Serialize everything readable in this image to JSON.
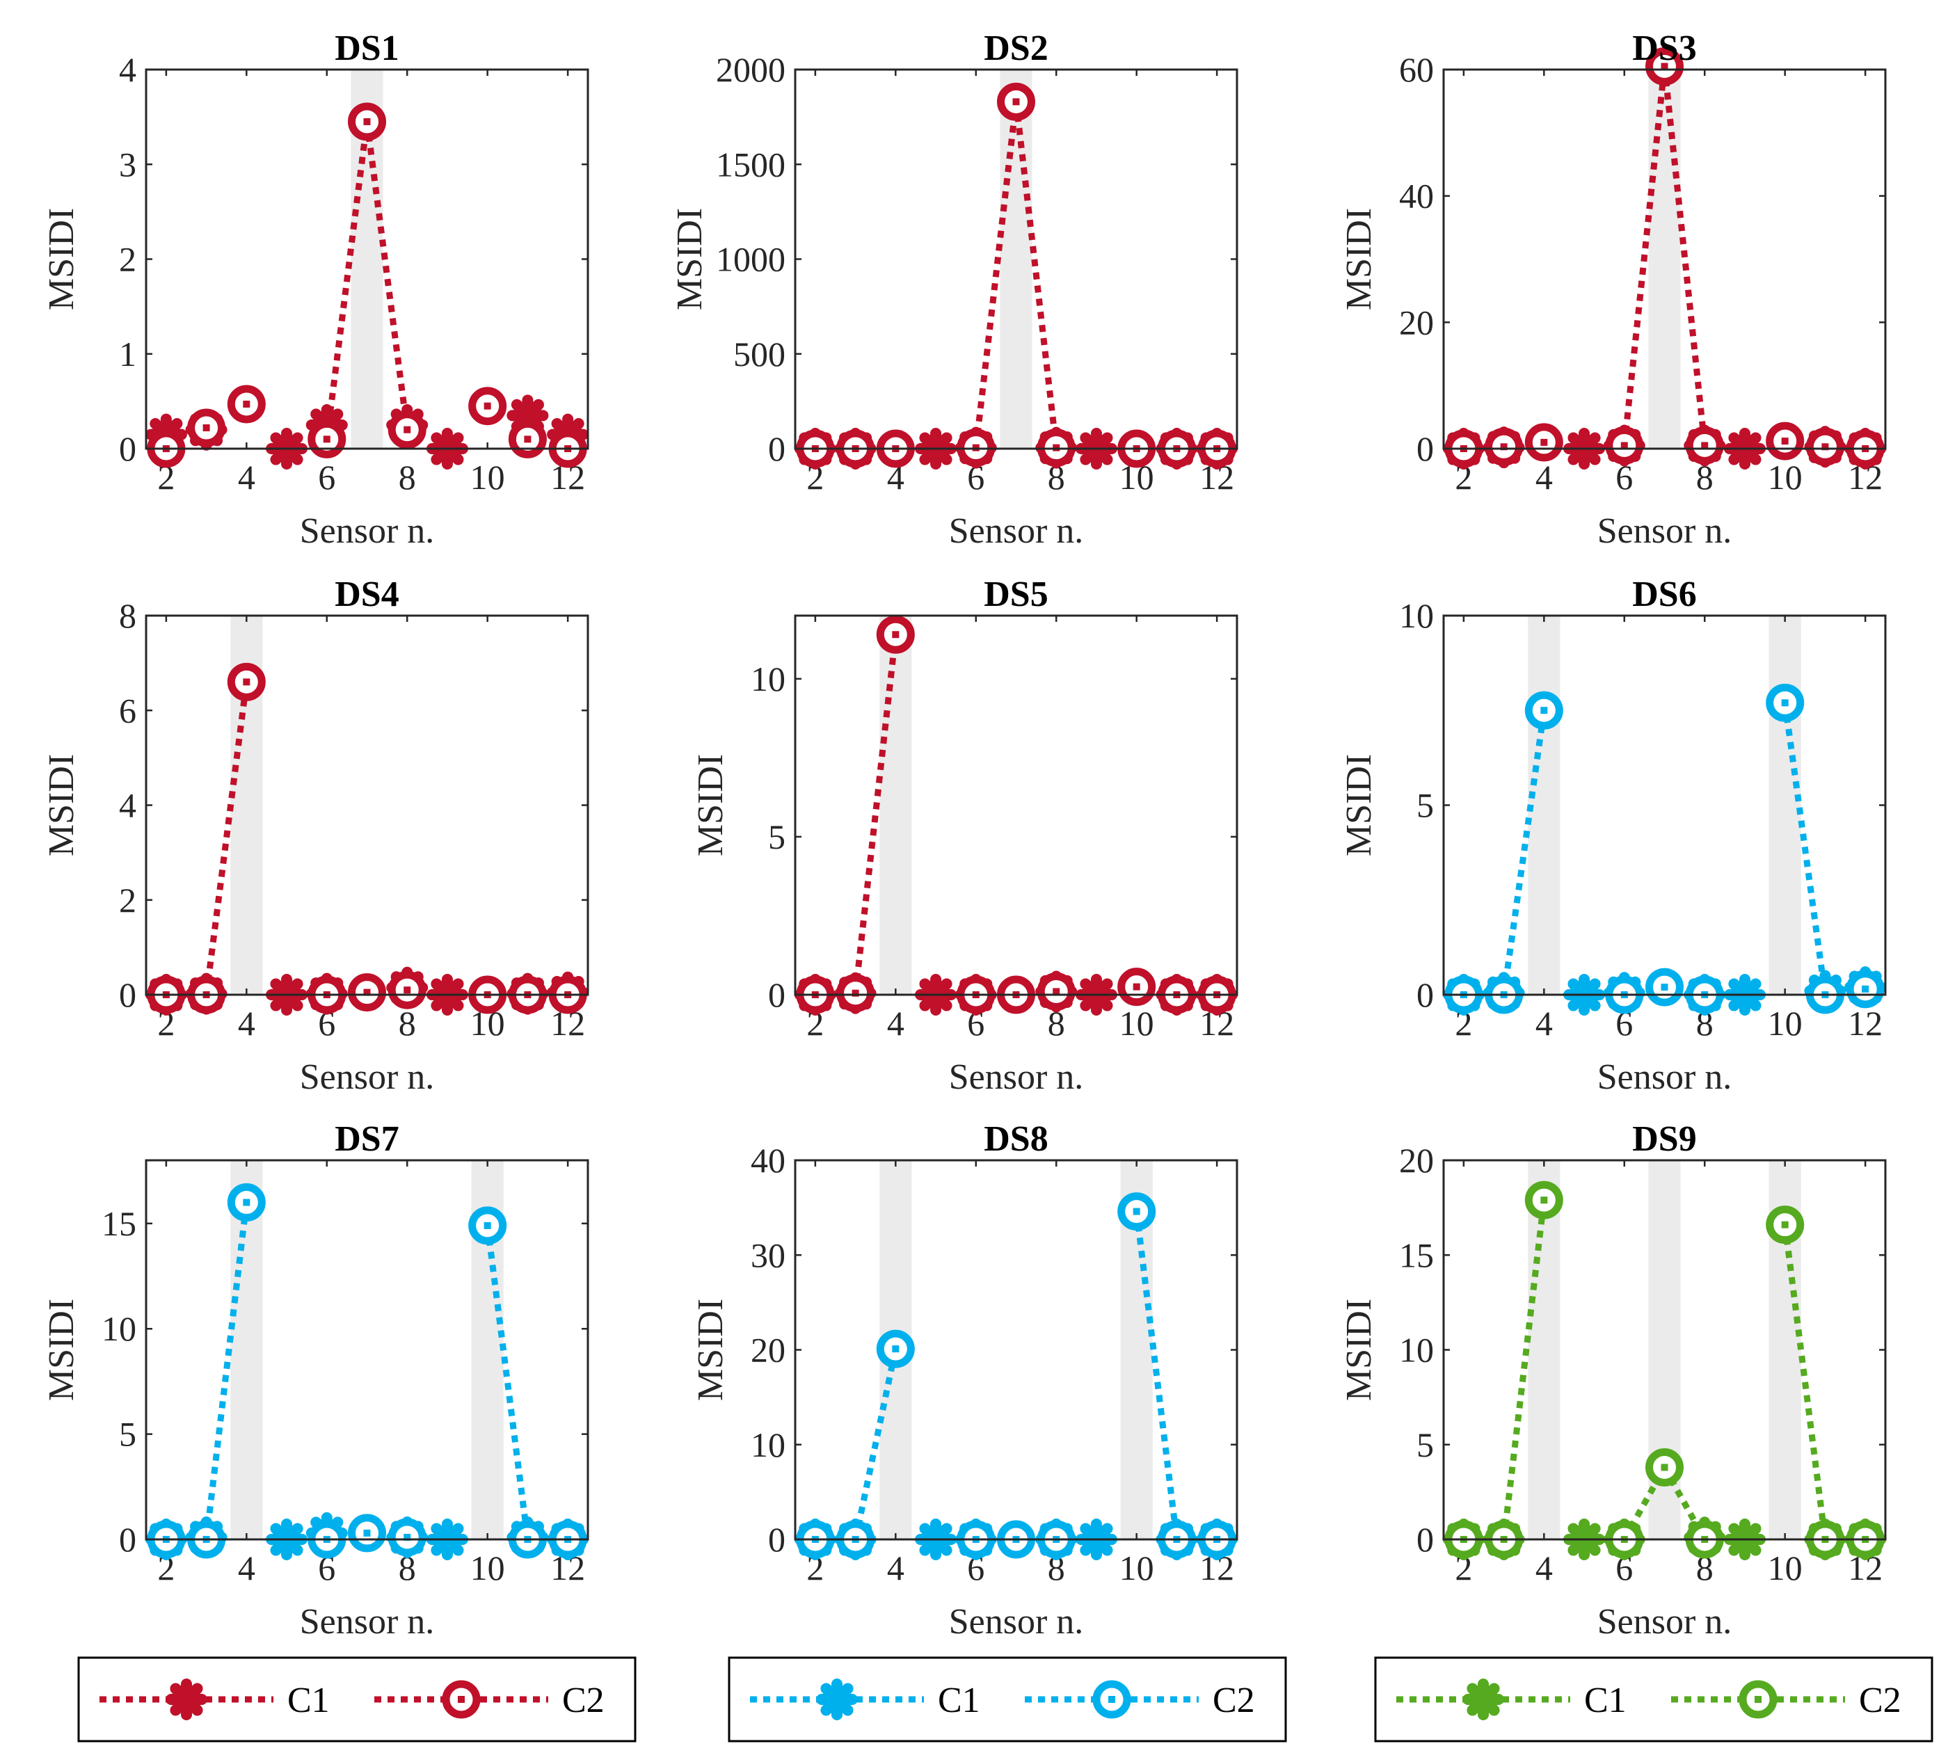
{
  "figure": {
    "x_label": "Sensor n.",
    "y_label": "MSIDI",
    "legends": [
      {
        "color": "#c0102a",
        "items": [
          {
            "label": "C1",
            "marker": "asterisk-marker-icon"
          },
          {
            "label": "C2",
            "marker": "circle-marker-icon"
          }
        ]
      },
      {
        "color": "#00b0ec",
        "items": [
          {
            "label": "C1",
            "marker": "asterisk-marker-icon"
          },
          {
            "label": "C2",
            "marker": "circle-marker-icon"
          }
        ]
      },
      {
        "color": "#55aa1f",
        "items": [
          {
            "label": "C1",
            "marker": "asterisk-marker-icon"
          },
          {
            "label": "C2",
            "marker": "circle-marker-icon"
          }
        ]
      }
    ]
  },
  "chart_data": [
    {
      "type": "line",
      "title": "DS1",
      "xlabel": "Sensor n.",
      "ylabel": "MSIDI",
      "xlim": [
        1.5,
        12.5
      ],
      "ylim": [
        0,
        4
      ],
      "xticks": [
        2,
        4,
        6,
        8,
        10,
        12
      ],
      "yticks": [
        0,
        1,
        2,
        3,
        4
      ],
      "ytick_labels": [
        "0",
        "1",
        "2",
        "3",
        "4"
      ],
      "color": "#c0102a",
      "highlight_sensors": [
        7
      ],
      "series": [
        {
          "name": "C1",
          "marker": "asterisk",
          "x": [
            2,
            3,
            5,
            6,
            8,
            9,
            11,
            12
          ],
          "values": [
            0.15,
            0.2,
            0.0,
            0.25,
            0.25,
            0.0,
            0.35,
            0.15
          ]
        },
        {
          "name": "C2",
          "marker": "circle",
          "x": [
            2,
            3,
            4,
            6,
            7,
            8,
            10,
            11,
            12
          ],
          "values": [
            0.0,
            0.22,
            0.47,
            0.1,
            3.45,
            0.2,
            0.45,
            0.1,
            0.0
          ]
        }
      ],
      "dashed_segments": [
        [
          6,
          7
        ],
        [
          7,
          8
        ]
      ]
    },
    {
      "type": "line",
      "title": "DS2",
      "xlabel": "Sensor n.",
      "ylabel": "MSIDI",
      "xlim": [
        1.5,
        12.5
      ],
      "ylim": [
        0,
        2000
      ],
      "xticks": [
        2,
        4,
        6,
        8,
        10,
        12
      ],
      "yticks": [
        0,
        500,
        1000,
        1500,
        2000
      ],
      "ytick_labels": [
        "0",
        "500",
        "1000",
        "1500",
        "2000"
      ],
      "color": "#c0102a",
      "highlight_sensors": [
        7
      ],
      "series": [
        {
          "name": "C1",
          "marker": "asterisk",
          "x": [
            2,
            3,
            5,
            6,
            8,
            9,
            11,
            12
          ],
          "values": [
            0,
            0,
            0,
            5,
            5,
            0,
            0,
            0
          ]
        },
        {
          "name": "C2",
          "marker": "circle",
          "x": [
            2,
            3,
            4,
            6,
            7,
            8,
            10,
            11,
            12
          ],
          "values": [
            0,
            0,
            0,
            5,
            1830,
            5,
            0,
            0,
            0
          ]
        }
      ],
      "dashed_segments": [
        [
          6,
          7
        ],
        [
          7,
          8
        ]
      ]
    },
    {
      "type": "line",
      "title": "DS3",
      "xlabel": "Sensor n.",
      "ylabel": "MSIDI",
      "xlim": [
        1.5,
        12.5
      ],
      "ylim": [
        0,
        60
      ],
      "xticks": [
        2,
        4,
        6,
        8,
        10,
        12
      ],
      "yticks": [
        0,
        20,
        40,
        60
      ],
      "ytick_labels": [
        "0",
        "20",
        "40",
        "60"
      ],
      "color": "#c0102a",
      "highlight_sensors": [
        7
      ],
      "series": [
        {
          "name": "C1",
          "marker": "asterisk",
          "x": [
            2,
            3,
            5,
            6,
            8,
            9,
            11,
            12
          ],
          "values": [
            0,
            0.2,
            0,
            0.5,
            0.5,
            0,
            0.3,
            0
          ]
        },
        {
          "name": "C2",
          "marker": "circle",
          "x": [
            2,
            3,
            4,
            6,
            7,
            8,
            10,
            11,
            12
          ],
          "values": [
            0,
            0.3,
            1.0,
            0.5,
            60.5,
            0.5,
            1.2,
            0.3,
            0
          ]
        }
      ],
      "dashed_segments": [
        [
          6,
          7
        ],
        [
          7,
          8
        ]
      ]
    },
    {
      "type": "line",
      "title": "DS4",
      "xlabel": "Sensor n.",
      "ylabel": "MSIDI",
      "xlim": [
        1.5,
        12.5
      ],
      "ylim": [
        0,
        8
      ],
      "xticks": [
        2,
        4,
        6,
        8,
        10,
        12
      ],
      "yticks": [
        0,
        2,
        4,
        6,
        8
      ],
      "ytick_labels": [
        "0",
        "2",
        "4",
        "6",
        "8"
      ],
      "color": "#c0102a",
      "highlight_sensors": [
        4
      ],
      "series": [
        {
          "name": "C1",
          "marker": "asterisk",
          "x": [
            2,
            3,
            5,
            6,
            8,
            9,
            11,
            12
          ],
          "values": [
            0,
            0.02,
            0,
            0.02,
            0.15,
            0,
            0.02,
            0.05
          ]
        },
        {
          "name": "C2",
          "marker": "circle",
          "x": [
            2,
            3,
            4,
            6,
            7,
            8,
            10,
            11,
            12
          ],
          "values": [
            0,
            0,
            6.6,
            0,
            0.05,
            0.1,
            0,
            0,
            0
          ]
        }
      ],
      "dashed_segments": [
        [
          3,
          4
        ]
      ]
    },
    {
      "type": "line",
      "title": "DS5",
      "xlabel": "Sensor n.",
      "ylabel": "MSIDI",
      "xlim": [
        1.5,
        12.5
      ],
      "ylim": [
        0,
        12
      ],
      "xticks": [
        2,
        4,
        6,
        8,
        10,
        12
      ],
      "yticks": [
        0,
        5,
        10
      ],
      "ytick_labels": [
        "0",
        "5",
        "10"
      ],
      "color": "#c0102a",
      "highlight_sensors": [
        4
      ],
      "series": [
        {
          "name": "C1",
          "marker": "asterisk",
          "x": [
            2,
            3,
            5,
            6,
            8,
            9,
            11,
            12
          ],
          "values": [
            0,
            0.05,
            0,
            0,
            0.1,
            0,
            0,
            0
          ]
        },
        {
          "name": "C2",
          "marker": "circle",
          "x": [
            2,
            3,
            4,
            6,
            7,
            8,
            10,
            11,
            12
          ],
          "values": [
            0,
            0.05,
            11.4,
            0,
            0,
            0.1,
            0.25,
            0,
            0
          ]
        }
      ],
      "dashed_segments": [
        [
          3,
          4
        ]
      ]
    },
    {
      "type": "line",
      "title": "DS6",
      "xlabel": "Sensor n.",
      "ylabel": "MSIDI",
      "xlim": [
        1.5,
        12.5
      ],
      "ylim": [
        0,
        10
      ],
      "xticks": [
        2,
        4,
        6,
        8,
        10,
        12
      ],
      "yticks": [
        0,
        5,
        10
      ],
      "ytick_labels": [
        "0",
        "5",
        "10"
      ],
      "color": "#00b0ec",
      "highlight_sensors": [
        4,
        10
      ],
      "series": [
        {
          "name": "C1",
          "marker": "asterisk",
          "x": [
            2,
            3,
            5,
            6,
            8,
            9,
            11,
            12
          ],
          "values": [
            0,
            0.05,
            0,
            0.05,
            0,
            0,
            0.1,
            0.2
          ]
        },
        {
          "name": "C2",
          "marker": "circle",
          "x": [
            2,
            3,
            4,
            6,
            7,
            8,
            10,
            11,
            12
          ],
          "values": [
            0,
            0,
            7.5,
            0,
            0.2,
            0,
            7.7,
            0,
            0.15
          ]
        }
      ],
      "dashed_segments": [
        [
          3,
          4
        ],
        [
          10,
          11
        ]
      ]
    },
    {
      "type": "line",
      "title": "DS7",
      "xlabel": "Sensor n.",
      "ylabel": "MSIDI",
      "xlim": [
        1.5,
        12.5
      ],
      "ylim": [
        0,
        18
      ],
      "xticks": [
        2,
        4,
        6,
        8,
        10,
        12
      ],
      "yticks": [
        0,
        5,
        10,
        15
      ],
      "ytick_labels": [
        "0",
        "5",
        "10",
        "15"
      ],
      "color": "#00b0ec",
      "highlight_sensors": [
        4,
        10
      ],
      "series": [
        {
          "name": "C1",
          "marker": "asterisk",
          "x": [
            2,
            3,
            5,
            6,
            8,
            9,
            11,
            12
          ],
          "values": [
            0,
            0.1,
            0,
            0.3,
            0.1,
            0,
            0.1,
            0
          ]
        },
        {
          "name": "C2",
          "marker": "circle",
          "x": [
            2,
            3,
            4,
            6,
            7,
            8,
            10,
            11,
            12
          ],
          "values": [
            0,
            0,
            16,
            0,
            0.3,
            0.1,
            14.9,
            0,
            0
          ]
        }
      ],
      "dashed_segments": [
        [
          3,
          4
        ],
        [
          10,
          11
        ]
      ]
    },
    {
      "type": "line",
      "title": "DS8",
      "xlabel": "Sensor n.",
      "ylabel": "MSIDI",
      "xlim": [
        1.5,
        12.5
      ],
      "ylim": [
        0,
        40
      ],
      "xticks": [
        2,
        4,
        6,
        8,
        10,
        12
      ],
      "yticks": [
        0,
        10,
        20,
        30,
        40
      ],
      "ytick_labels": [
        "0",
        "10",
        "20",
        "30",
        "40"
      ],
      "color": "#00b0ec",
      "highlight_sensors": [
        4,
        10
      ],
      "series": [
        {
          "name": "C1",
          "marker": "asterisk",
          "x": [
            2,
            3,
            5,
            6,
            8,
            9,
            11,
            12
          ],
          "values": [
            0,
            0,
            0,
            0,
            0,
            0,
            0,
            0
          ]
        },
        {
          "name": "C2",
          "marker": "circle",
          "x": [
            2,
            3,
            4,
            6,
            7,
            8,
            10,
            11,
            12
          ],
          "values": [
            0,
            0,
            20.1,
            0,
            0,
            0,
            34.6,
            0,
            0
          ]
        }
      ],
      "dashed_segments": [
        [
          3,
          4
        ],
        [
          10,
          11
        ]
      ]
    },
    {
      "type": "line",
      "title": "DS9",
      "xlabel": "Sensor n.",
      "ylabel": "MSIDI",
      "xlim": [
        1.5,
        12.5
      ],
      "ylim": [
        0,
        20
      ],
      "xticks": [
        2,
        4,
        6,
        8,
        10,
        12
      ],
      "yticks": [
        0,
        5,
        10,
        15,
        20
      ],
      "ytick_labels": [
        "0",
        "5",
        "10",
        "15",
        "20"
      ],
      "color": "#55aa1f",
      "highlight_sensors": [
        4,
        7,
        10
      ],
      "series": [
        {
          "name": "C1",
          "marker": "asterisk",
          "x": [
            2,
            3,
            5,
            6,
            8,
            9,
            11,
            12
          ],
          "values": [
            0,
            0,
            0,
            0,
            0.1,
            0,
            0,
            0
          ]
        },
        {
          "name": "C2",
          "marker": "circle",
          "x": [
            2,
            3,
            4,
            6,
            7,
            8,
            10,
            11,
            12
          ],
          "values": [
            0,
            0,
            17.9,
            0,
            3.8,
            0,
            16.6,
            0,
            0
          ]
        }
      ],
      "dashed_segments": [
        [
          3,
          4
        ],
        [
          6,
          7
        ],
        [
          7,
          8
        ],
        [
          10,
          11
        ]
      ]
    }
  ]
}
